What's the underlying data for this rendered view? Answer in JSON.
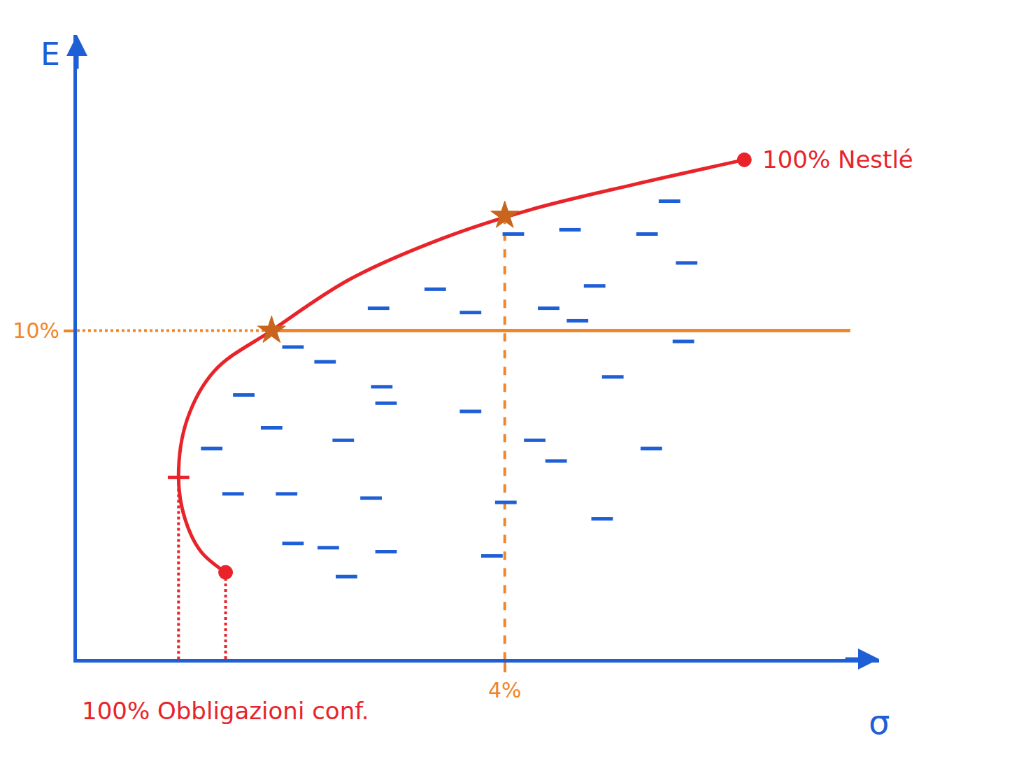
{
  "chart_data": {
    "type": "line",
    "x_label": "σ",
    "y_label": "E",
    "xlim": [
      0,
      7.5
    ],
    "ylim": [
      0,
      19
    ],
    "xticks": [
      {
        "value": 4,
        "label": "4%"
      }
    ],
    "yticks": [
      {
        "value": 10,
        "label": "10%"
      }
    ],
    "tick_color": "#f0862a",
    "axis_color": "#1f5fd6",
    "grid": false,
    "series": [
      {
        "type": "line",
        "color": "#e8242a",
        "line_style": "solid",
        "x": [
          1.39,
          1.16,
          1.01,
          0.95,
          1.03,
          1.29,
          1.82,
          2.55,
          3.42,
          4.25,
          5.21,
          6.24
        ],
        "values": [
          2.64,
          3.27,
          4.27,
          5.53,
          7.29,
          8.79,
          10,
          11.56,
          12.81,
          13.69,
          14.45,
          15.2
        ]
      },
      {
        "type": "scatter",
        "color": "#e8242a",
        "marker": "circle",
        "x": [
          1.39,
          6.24
        ],
        "values": [
          2.64,
          15.2
        ]
      },
      {
        "type": "scatter",
        "color": "#e8242a",
        "marker": "line-ew",
        "x": [
          0.95
        ],
        "values": [
          5.53
        ]
      },
      {
        "type": "line",
        "color": "#e8242a",
        "line_style": "dot",
        "x": [
          0.95,
          0.95
        ],
        "values": [
          5.53,
          0
        ]
      },
      {
        "type": "line",
        "color": "#e8242a",
        "line_style": "dot",
        "x": [
          1.39,
          1.39
        ],
        "values": [
          2.64,
          0
        ]
      },
      {
        "type": "line",
        "color": "#f0862a",
        "line_style": "solid",
        "x": [
          1.82,
          7.23
        ],
        "values": [
          10,
          10
        ]
      },
      {
        "type": "line",
        "color": "#f0862a",
        "line_style": "dot",
        "x": [
          0,
          1.82
        ],
        "values": [
          10,
          10
        ]
      },
      {
        "type": "line",
        "color": "#f0862a",
        "line_style": "dash",
        "x": [
          4,
          4
        ],
        "values": [
          13.5,
          0
        ]
      },
      {
        "type": "scatter",
        "color": "#c8641e",
        "marker": "star",
        "x": [
          1.82,
          4
        ],
        "values": [
          10,
          13.5
        ]
      },
      {
        "type": "scatter",
        "color": "#1f5fd6",
        "marker": "line-ew",
        "x": [
          4.08,
          4.61,
          5.54,
          5.33,
          5.7,
          4.84,
          3.35,
          2.82,
          3.68,
          4.41,
          4.68,
          5.67,
          2.02,
          2.32,
          2.85,
          5.01,
          1.56,
          1.82,
          2.89,
          3.68,
          2.49,
          4.28,
          4.48,
          5.37,
          1.26,
          1.46,
          1.96,
          2.75,
          4.01,
          4.91,
          2.02,
          2.35,
          2.89,
          2.52,
          3.88
        ],
        "values": [
          12.94,
          13.07,
          13.94,
          12.94,
          12.06,
          11.36,
          11.26,
          10.68,
          10.55,
          10.68,
          10.3,
          9.67,
          9.5,
          9.05,
          8.29,
          8.59,
          8.04,
          7.04,
          7.79,
          7.54,
          6.66,
          6.66,
          6.03,
          6.41,
          6.41,
          5.03,
          5.03,
          4.9,
          4.77,
          4.27,
          3.52,
          3.39,
          3.27,
          2.51,
          3.14
        ]
      }
    ],
    "annotations": [
      {
        "text": "100% Nestlé",
        "x": 6.24,
        "y": 15.2,
        "color": "#e8242a"
      },
      {
        "text": "100% Obbligazioni conf.",
        "x": 1.39,
        "color": "#e8242a"
      }
    ]
  }
}
